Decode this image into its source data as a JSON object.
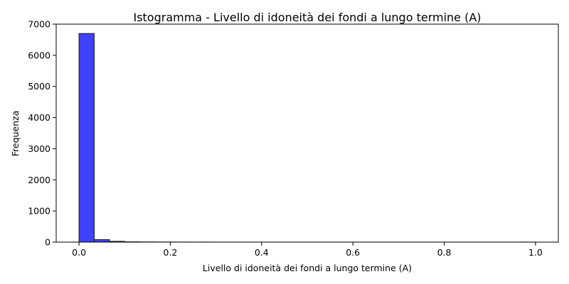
{
  "chart_data": {
    "type": "bar",
    "subtype": "histogram",
    "title": "Istogramma - Livello di idoneità dei fondi a lungo termine (A)",
    "xlabel": "Livello di idoneità dei fondi a lungo termine (A)",
    "ylabel": "Frequenza",
    "xlim": [
      -0.05,
      1.05
    ],
    "ylim": [
      0,
      7000
    ],
    "xticks": [
      0.0,
      0.2,
      0.4,
      0.6,
      0.8,
      1.0
    ],
    "xtick_labels": [
      "0.0",
      "0.2",
      "0.4",
      "0.6",
      "0.8",
      "1.0"
    ],
    "yticks": [
      0,
      1000,
      2000,
      3000,
      4000,
      5000,
      6000,
      7000
    ],
    "ytick_labels": [
      "0",
      "1000",
      "2000",
      "3000",
      "4000",
      "5000",
      "6000",
      "7000"
    ],
    "bin_edges": [
      0.0,
      0.0333,
      0.0667,
      0.1,
      0.1333,
      0.1667,
      0.2,
      0.2333,
      0.2667,
      0.3,
      0.3333,
      0.3667,
      0.4,
      0.4333,
      0.4667,
      0.5,
      0.5333,
      0.5667,
      0.6,
      0.6333,
      0.6667,
      0.7,
      0.7333,
      0.7667,
      0.8,
      0.8333,
      0.8667,
      0.9,
      0.9333,
      0.9667,
      1.0
    ],
    "values": [
      6700,
      80,
      25,
      10,
      6,
      4,
      3,
      2,
      2,
      1,
      1,
      1,
      1,
      1,
      1,
      1,
      1,
      1,
      1,
      1,
      1,
      1,
      1,
      1,
      1,
      1,
      1,
      1,
      1,
      2
    ],
    "bar_color": "#4040ff",
    "edge_color": "#1a1a1a",
    "grid": false,
    "legend": "none"
  }
}
